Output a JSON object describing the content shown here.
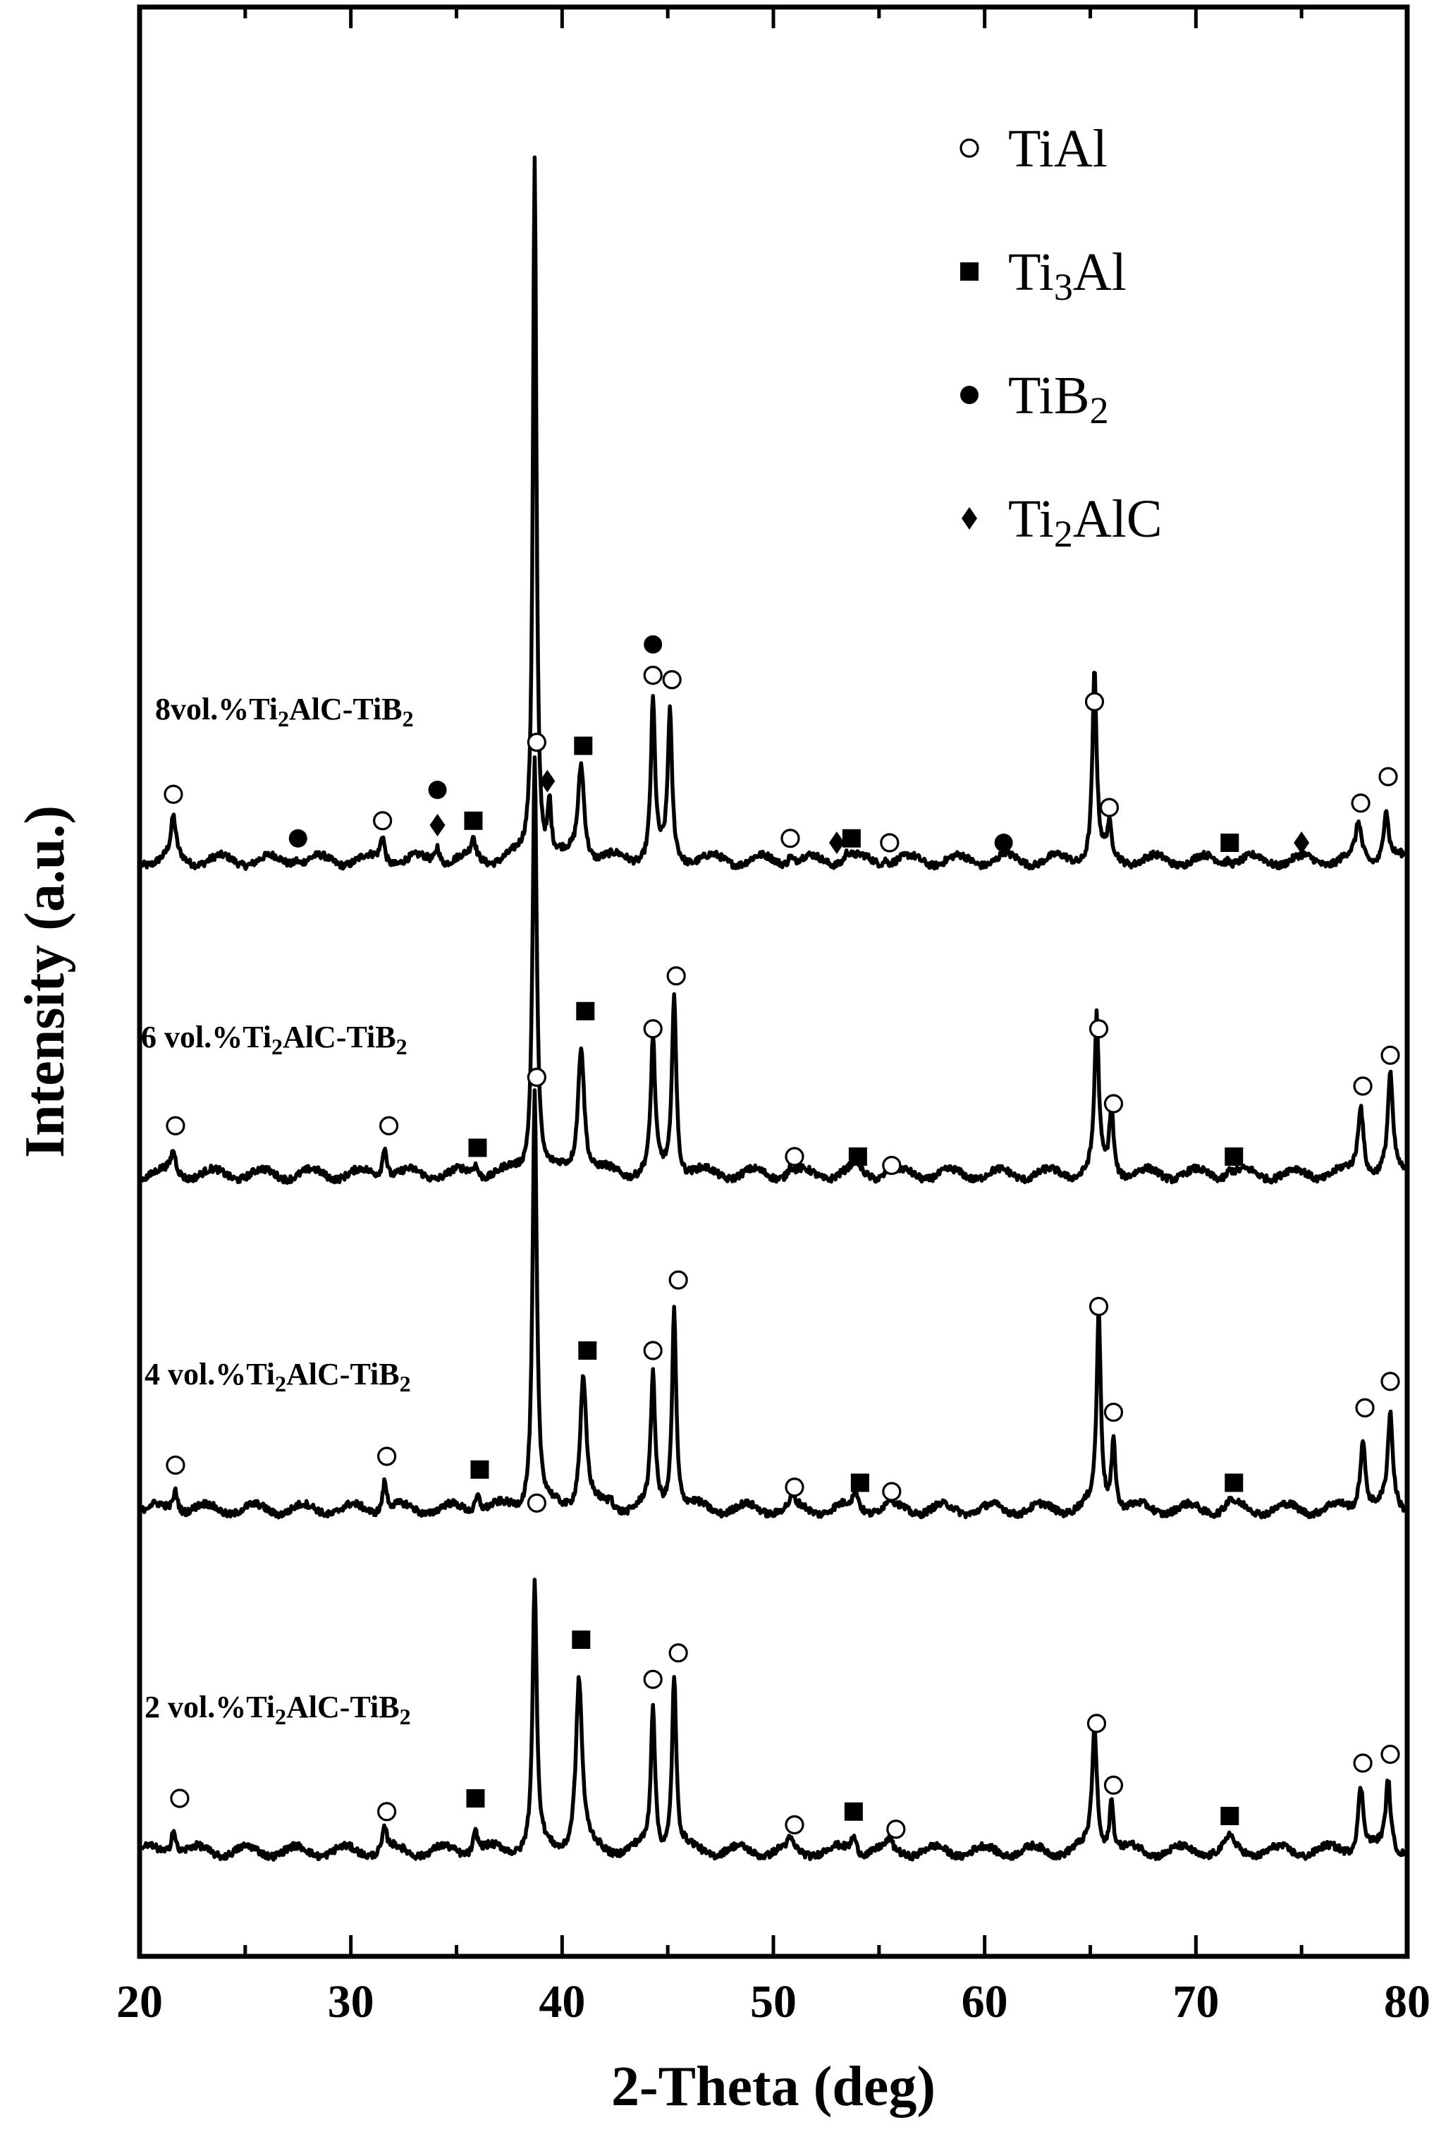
{
  "chart_data": {
    "type": "line",
    "xlabel": "2-Theta (deg)",
    "ylabel": "Intensity (a.u.)",
    "xlim": [
      20,
      80
    ],
    "x_ticks": [
      "20",
      "30",
      "40",
      "50",
      "60",
      "70",
      "80"
    ],
    "y_ticks": "none",
    "legend": {
      "placement": "top-right",
      "items": [
        {
          "label": "TiAl",
          "base": "TiAl",
          "sub": "",
          "rest": "",
          "marker": "open-circle"
        },
        {
          "label": "Ti3Al",
          "base": "Ti",
          "sub": "3",
          "rest": "Al",
          "marker": "filled-square"
        },
        {
          "label": "TiB2",
          "base": "TiB",
          "sub": "2",
          "rest": "",
          "marker": "filled-circle"
        },
        {
          "label": "Ti2AlC",
          "base": "Ti",
          "sub": "2",
          "rest": "AlC",
          "marker": "filled-diamond"
        }
      ]
    },
    "series": [
      {
        "name": "8vol.%Ti2AlC-TiB2",
        "label_parts": [
          "8vol.%Ti",
          "2",
          "AlC-TiB",
          "2"
        ],
        "peaks": [
          {
            "x": 21.6,
            "h": 0.09,
            "w": 0.35
          },
          {
            "x": 27.4,
            "h": 0.012,
            "w": 0.3
          },
          {
            "x": 31.5,
            "h": 0.06,
            "w": 0.3
          },
          {
            "x": 34.1,
            "h": 0.04,
            "w": 0.3
          },
          {
            "x": 35.8,
            "h": 0.045,
            "w": 0.3
          },
          {
            "x": 38.7,
            "h": 1.6,
            "w": 0.25
          },
          {
            "x": 39.4,
            "h": 0.12,
            "w": 0.25
          },
          {
            "x": 40.9,
            "h": 0.22,
            "w": 0.45
          },
          {
            "x": 44.3,
            "h": 0.36,
            "w": 0.3
          },
          {
            "x": 45.1,
            "h": 0.33,
            "w": 0.3
          },
          {
            "x": 50.8,
            "h": 0.02,
            "w": 0.3
          },
          {
            "x": 53.5,
            "h": 0.02,
            "w": 0.4
          },
          {
            "x": 55.3,
            "h": 0.012,
            "w": 0.3
          },
          {
            "x": 60.9,
            "h": 0.01,
            "w": 0.3
          },
          {
            "x": 65.2,
            "h": 0.43,
            "w": 0.3
          },
          {
            "x": 65.9,
            "h": 0.07,
            "w": 0.3
          },
          {
            "x": 71.5,
            "h": 0.01,
            "w": 0.4
          },
          {
            "x": 77.7,
            "h": 0.08,
            "w": 0.4
          },
          {
            "x": 79.0,
            "h": 0.12,
            "w": 0.35
          }
        ],
        "markers": [
          {
            "x": 21.6,
            "type": "open-circle",
            "h": 0.15
          },
          {
            "x": 27.5,
            "type": "filled-circle",
            "h": 0.05
          },
          {
            "x": 31.5,
            "type": "open-circle",
            "h": 0.09
          },
          {
            "x": 34.1,
            "type": "filled-circle",
            "h": 0.16
          },
          {
            "x": 34.1,
            "type": "filled-diamond",
            "h": 0.08
          },
          {
            "x": 35.8,
            "type": "filled-square",
            "h": 0.09
          },
          {
            "x": 39.3,
            "type": "filled-diamond",
            "h": 0.18
          },
          {
            "x": 41.0,
            "type": "filled-square",
            "h": 0.26
          },
          {
            "x": 44.3,
            "type": "filled-circle",
            "h": 0.49
          },
          {
            "x": 44.3,
            "type": "open-circle",
            "h": 0.42
          },
          {
            "x": 45.2,
            "type": "open-circle",
            "h": 0.41
          },
          {
            "x": 50.8,
            "type": "open-circle",
            "h": 0.05
          },
          {
            "x": 53.0,
            "type": "filled-diamond",
            "h": 0.04
          },
          {
            "x": 53.7,
            "type": "filled-square",
            "h": 0.05
          },
          {
            "x": 55.5,
            "type": "open-circle",
            "h": 0.04
          },
          {
            "x": 60.9,
            "type": "filled-circle",
            "h": 0.04
          },
          {
            "x": 65.2,
            "type": "open-circle",
            "h": 0.36
          },
          {
            "x": 65.9,
            "type": "open-circle",
            "h": 0.12
          },
          {
            "x": 71.6,
            "type": "filled-square",
            "h": 0.04
          },
          {
            "x": 75.0,
            "type": "filled-diamond",
            "h": 0.04
          },
          {
            "x": 77.8,
            "type": "open-circle",
            "h": 0.13
          },
          {
            "x": 79.1,
            "type": "open-circle",
            "h": 0.19
          }
        ]
      },
      {
        "name": "6 vol.%Ti2AlC-TiB2",
        "label_parts": [
          "6 vol.%Ti",
          "2",
          "AlC-TiB",
          "2"
        ],
        "peaks": [
          {
            "x": 21.6,
            "h": 0.05,
            "w": 0.35
          },
          {
            "x": 31.6,
            "h": 0.075,
            "w": 0.3
          },
          {
            "x": 35.9,
            "h": 0.025,
            "w": 0.35
          },
          {
            "x": 38.7,
            "h": 0.95,
            "w": 0.3
          },
          {
            "x": 40.9,
            "h": 0.3,
            "w": 0.45
          },
          {
            "x": 44.3,
            "h": 0.3,
            "w": 0.3
          },
          {
            "x": 45.3,
            "h": 0.42,
            "w": 0.3
          },
          {
            "x": 50.8,
            "h": 0.02,
            "w": 0.3
          },
          {
            "x": 53.9,
            "h": 0.03,
            "w": 0.4
          },
          {
            "x": 55.4,
            "h": 0.015,
            "w": 0.3
          },
          {
            "x": 65.3,
            "h": 0.35,
            "w": 0.3
          },
          {
            "x": 66.0,
            "h": 0.15,
            "w": 0.3
          },
          {
            "x": 71.6,
            "h": 0.015,
            "w": 0.4
          },
          {
            "x": 77.8,
            "h": 0.16,
            "w": 0.4
          },
          {
            "x": 79.2,
            "h": 0.22,
            "w": 0.35
          }
        ],
        "markers": [
          {
            "x": 21.7,
            "type": "open-circle",
            "h": 0.11
          },
          {
            "x": 31.8,
            "type": "open-circle",
            "h": 0.11
          },
          {
            "x": 36.0,
            "type": "filled-square",
            "h": 0.06
          },
          {
            "x": 38.8,
            "type": "open-circle",
            "h": 0.98
          },
          {
            "x": 41.1,
            "type": "filled-square",
            "h": 0.37
          },
          {
            "x": 44.3,
            "type": "open-circle",
            "h": 0.33
          },
          {
            "x": 45.4,
            "type": "open-circle",
            "h": 0.45
          },
          {
            "x": 51.0,
            "type": "open-circle",
            "h": 0.04
          },
          {
            "x": 54.0,
            "type": "filled-square",
            "h": 0.04
          },
          {
            "x": 55.6,
            "type": "open-circle",
            "h": 0.02
          },
          {
            "x": 65.4,
            "type": "open-circle",
            "h": 0.33
          },
          {
            "x": 66.1,
            "type": "open-circle",
            "h": 0.16
          },
          {
            "x": 71.8,
            "type": "filled-square",
            "h": 0.04
          },
          {
            "x": 77.9,
            "type": "open-circle",
            "h": 0.2
          },
          {
            "x": 79.2,
            "type": "open-circle",
            "h": 0.27
          }
        ]
      },
      {
        "name": "4 vol.%Ti2AlC-TiB2",
        "label_parts": [
          "4 vol.%Ti",
          "2",
          "AlC-TiB",
          "2"
        ],
        "peaks": [
          {
            "x": 21.7,
            "h": 0.05,
            "w": 0.35
          },
          {
            "x": 31.6,
            "h": 0.07,
            "w": 0.3
          },
          {
            "x": 36.0,
            "h": 0.04,
            "w": 0.35
          },
          {
            "x": 38.7,
            "h": 0.95,
            "w": 0.3
          },
          {
            "x": 41.0,
            "h": 0.3,
            "w": 0.45
          },
          {
            "x": 42.3,
            "h": 0.02,
            "w": 0.3
          },
          {
            "x": 44.3,
            "h": 0.3,
            "w": 0.3
          },
          {
            "x": 45.3,
            "h": 0.46,
            "w": 0.3
          },
          {
            "x": 50.9,
            "h": 0.02,
            "w": 0.3
          },
          {
            "x": 53.9,
            "h": 0.04,
            "w": 0.4
          },
          {
            "x": 55.5,
            "h": 0.02,
            "w": 0.3
          },
          {
            "x": 65.4,
            "h": 0.44,
            "w": 0.3
          },
          {
            "x": 66.1,
            "h": 0.16,
            "w": 0.3
          },
          {
            "x": 71.6,
            "h": 0.02,
            "w": 0.4
          },
          {
            "x": 77.9,
            "h": 0.16,
            "w": 0.4
          },
          {
            "x": 79.2,
            "h": 0.21,
            "w": 0.35
          }
        ],
        "markers": [
          {
            "x": 21.7,
            "type": "open-circle",
            "h": 0.1
          },
          {
            "x": 31.7,
            "type": "open-circle",
            "h": 0.12
          },
          {
            "x": 36.1,
            "type": "filled-square",
            "h": 0.09
          },
          {
            "x": 38.8,
            "type": "open-circle",
            "h": 0.98
          },
          {
            "x": 41.2,
            "type": "filled-square",
            "h": 0.36
          },
          {
            "x": 44.3,
            "type": "open-circle",
            "h": 0.36
          },
          {
            "x": 45.5,
            "type": "open-circle",
            "h": 0.52
          },
          {
            "x": 51.0,
            "type": "open-circle",
            "h": 0.05
          },
          {
            "x": 54.1,
            "type": "filled-square",
            "h": 0.06
          },
          {
            "x": 55.6,
            "type": "open-circle",
            "h": 0.04
          },
          {
            "x": 65.4,
            "type": "open-circle",
            "h": 0.46
          },
          {
            "x": 66.1,
            "type": "open-circle",
            "h": 0.22
          },
          {
            "x": 71.8,
            "type": "filled-square",
            "h": 0.06
          },
          {
            "x": 78.0,
            "type": "open-circle",
            "h": 0.23
          },
          {
            "x": 79.2,
            "type": "open-circle",
            "h": 0.29
          }
        ]
      },
      {
        "name": "2 vol.%Ti2AlC-TiB2",
        "label_parts": [
          "2 vol.%Ti",
          "2",
          "AlC-TiB",
          "2"
        ],
        "peaks": [
          {
            "x": 21.6,
            "h": 0.06,
            "w": 0.35
          },
          {
            "x": 31.6,
            "h": 0.05,
            "w": 0.3
          },
          {
            "x": 35.9,
            "h": 0.05,
            "w": 0.35
          },
          {
            "x": 38.7,
            "h": 0.6,
            "w": 0.3
          },
          {
            "x": 40.8,
            "h": 0.39,
            "w": 0.45
          },
          {
            "x": 44.3,
            "h": 0.33,
            "w": 0.3
          },
          {
            "x": 45.3,
            "h": 0.4,
            "w": 0.3
          },
          {
            "x": 50.8,
            "h": 0.02,
            "w": 0.3
          },
          {
            "x": 53.8,
            "h": 0.04,
            "w": 0.4
          },
          {
            "x": 55.5,
            "h": 0.02,
            "w": 0.3
          },
          {
            "x": 65.2,
            "h": 0.28,
            "w": 0.35
          },
          {
            "x": 66.0,
            "h": 0.12,
            "w": 0.3
          },
          {
            "x": 71.6,
            "h": 0.03,
            "w": 0.4
          },
          {
            "x": 77.8,
            "h": 0.15,
            "w": 0.4
          },
          {
            "x": 79.1,
            "h": 0.16,
            "w": 0.35
          }
        ],
        "markers": [
          {
            "x": 21.9,
            "type": "open-circle",
            "h": 0.12
          },
          {
            "x": 31.7,
            "type": "open-circle",
            "h": 0.09
          },
          {
            "x": 35.9,
            "type": "filled-square",
            "h": 0.12
          },
          {
            "x": 38.8,
            "type": "open-circle",
            "h": 0.79
          },
          {
            "x": 40.9,
            "type": "filled-square",
            "h": 0.48
          },
          {
            "x": 44.3,
            "type": "open-circle",
            "h": 0.39
          },
          {
            "x": 45.5,
            "type": "open-circle",
            "h": 0.45
          },
          {
            "x": 51.0,
            "type": "open-circle",
            "h": 0.06
          },
          {
            "x": 53.8,
            "type": "filled-square",
            "h": 0.09
          },
          {
            "x": 55.8,
            "type": "open-circle",
            "h": 0.05
          },
          {
            "x": 65.3,
            "type": "open-circle",
            "h": 0.29
          },
          {
            "x": 66.1,
            "type": "open-circle",
            "h": 0.15
          },
          {
            "x": 71.6,
            "type": "filled-square",
            "h": 0.08
          },
          {
            "x": 77.9,
            "type": "open-circle",
            "h": 0.2
          },
          {
            "x": 79.2,
            "type": "open-circle",
            "h": 0.22
          }
        ]
      }
    ]
  }
}
